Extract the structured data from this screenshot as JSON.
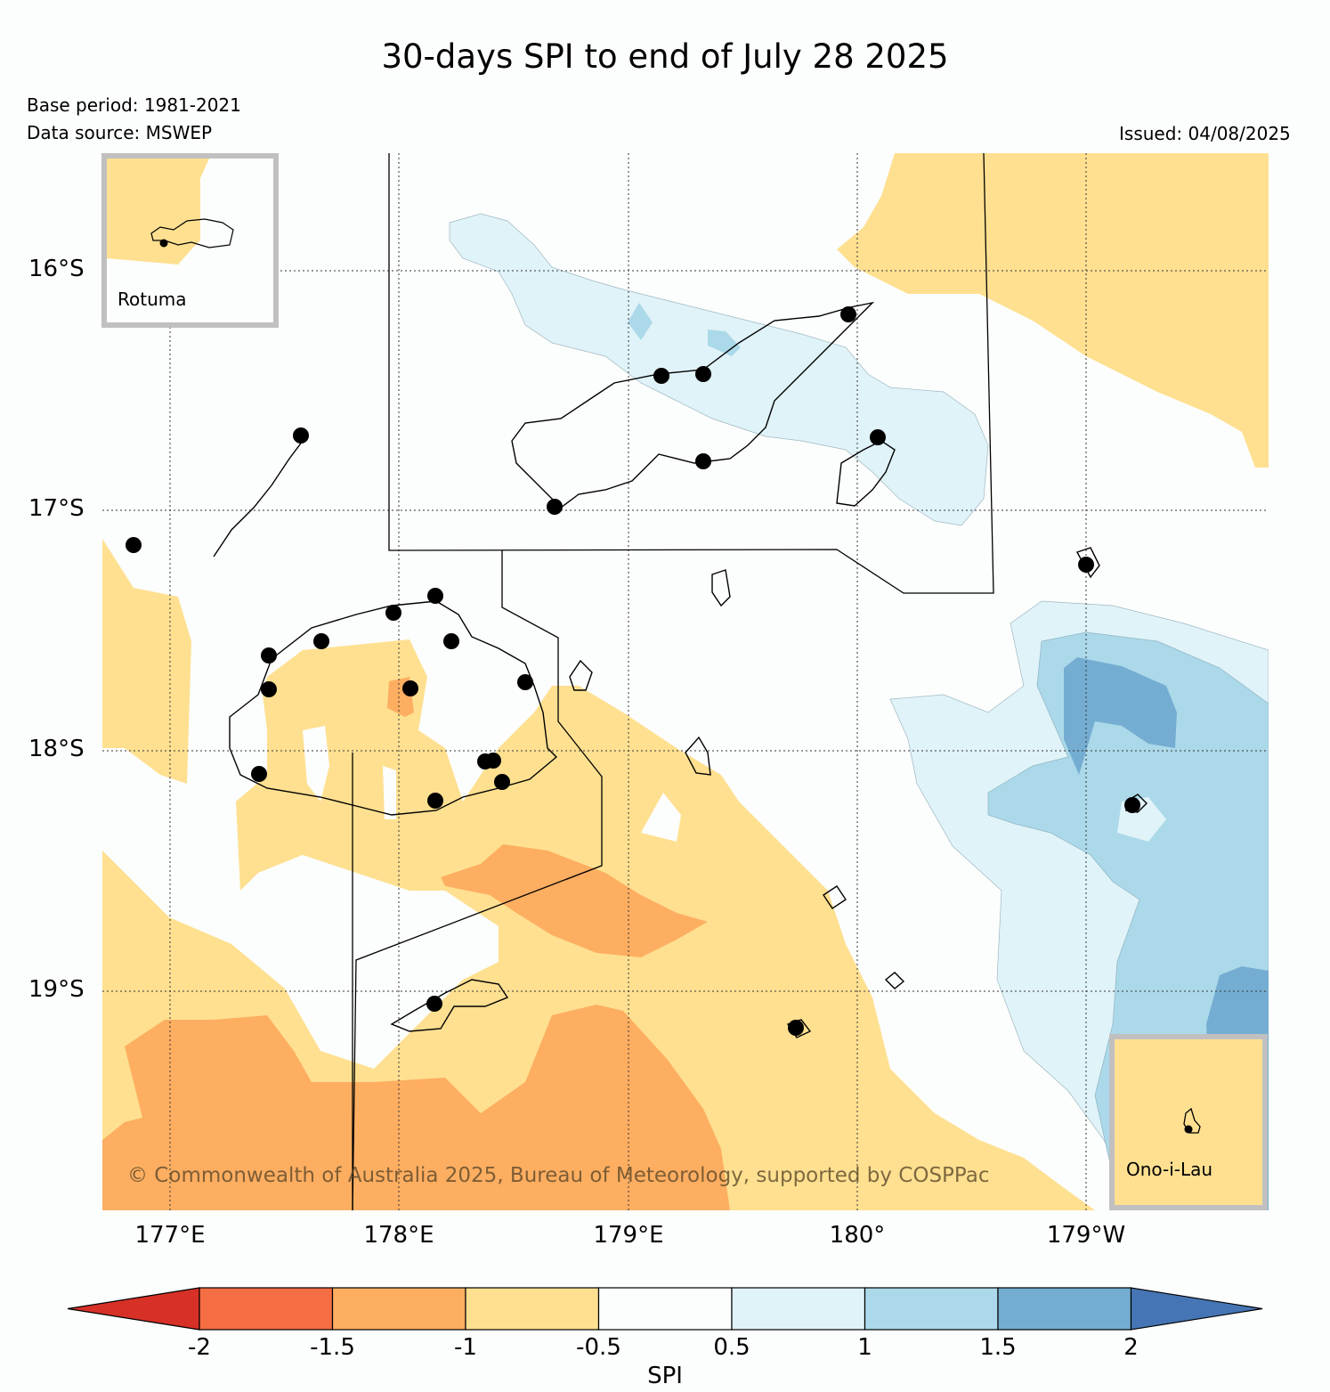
{
  "title": "30-days SPI to end of July 28 2025",
  "base_period": "Base period: 1981-2021",
  "data_source": "Data source: MSWEP",
  "issued": "Issued: 04/08/2025",
  "longitude_labels": [
    "177°E",
    "178°E",
    "179°E",
    "180°",
    "179°W"
  ],
  "latitude_labels": [
    "16°S",
    "17°S",
    "18°S",
    "19°S"
  ],
  "insets": {
    "rotuma": "Rotuma",
    "ono_i_lau": "Ono-i-Lau"
  },
  "copyright": "© Commonwealth of Australia 2025, Bureau of Meteorology, supported by COSPPac",
  "colorbar": {
    "label": "SPI",
    "ticks": [
      "-2",
      "-1.5",
      "-1",
      "-0.5",
      "0.5",
      "1",
      "1.5",
      "2"
    ],
    "colors": [
      "#d73027",
      "#f46d43",
      "#fdae61",
      "#fee090",
      "#fcfdfd",
      "#e0f3f8",
      "#abd9e9",
      "#74add1",
      "#4575b4"
    ]
  }
}
